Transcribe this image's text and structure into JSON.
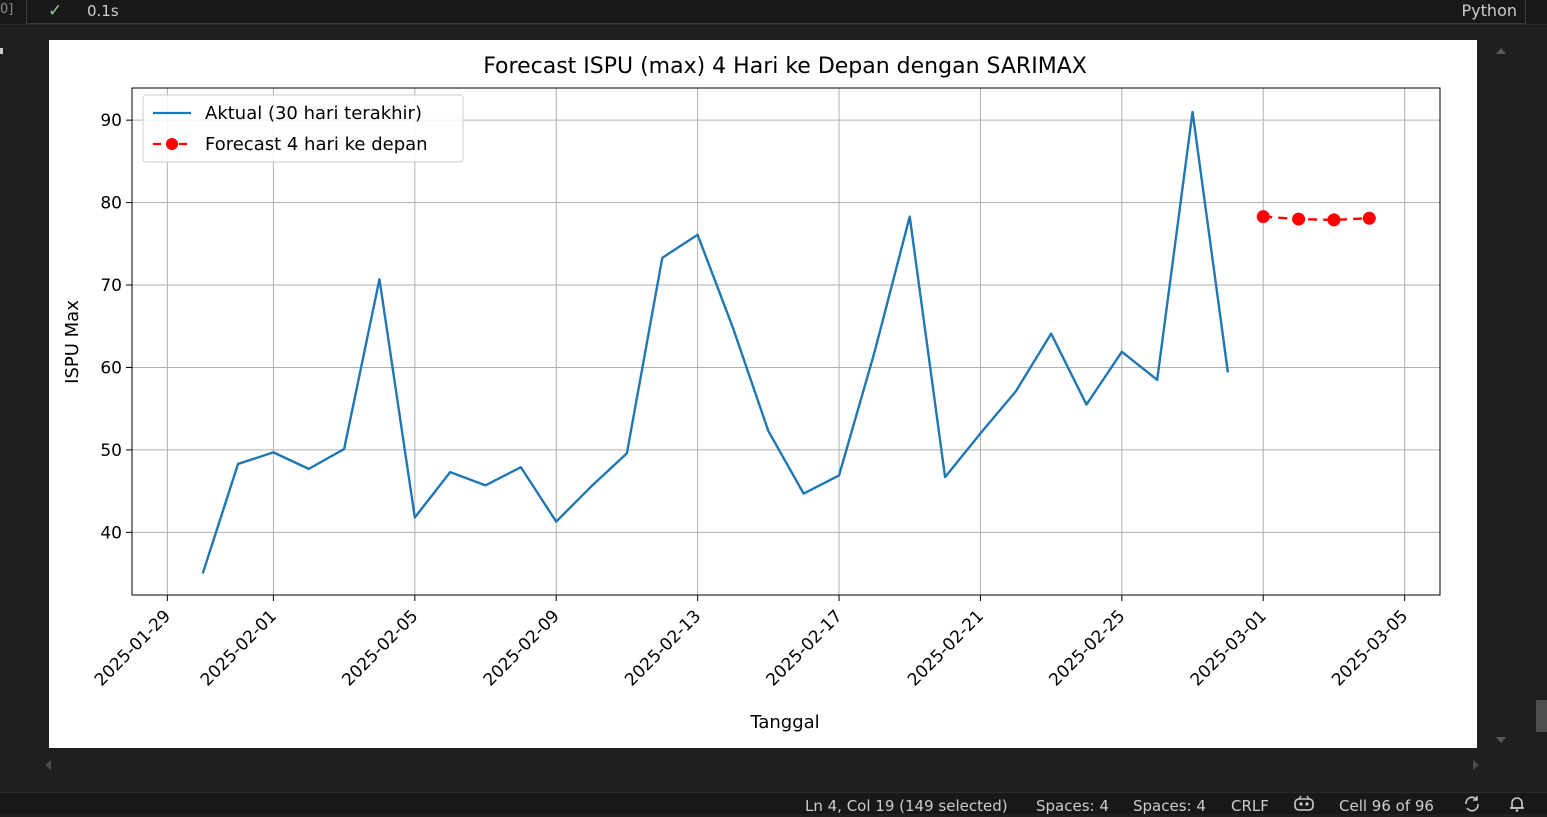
{
  "cell": {
    "exec_count": "0]",
    "status_icon": "check-icon",
    "exec_time": "0.1s",
    "kernel": "Python"
  },
  "chart_data": {
    "type": "line",
    "title": "Forecast ISPU (max) 4 Hari ke Depan dengan SARIMAX",
    "xlabel": "Tanggal",
    "ylabel": "ISPU Max",
    "x_tick_labels": [
      "2025-01-29",
      "2025-02-01",
      "2025-02-05",
      "2025-02-09",
      "2025-02-13",
      "2025-02-17",
      "2025-02-21",
      "2025-02-25",
      "2025-03-01",
      "2025-03-05"
    ],
    "y_ticks": [
      40,
      50,
      60,
      70,
      80,
      90
    ],
    "xlim": [
      "2025-01-28",
      "2025-03-06"
    ],
    "ylim": [
      32.4,
      93.9
    ],
    "grid": true,
    "legend_position": "upper left",
    "series": [
      {
        "name": "Aktual (30 hari terakhir)",
        "color": "#1f77b4",
        "style": "solid",
        "marker": "none",
        "x": [
          "2025-01-30",
          "2025-01-31",
          "2025-02-01",
          "2025-02-02",
          "2025-02-03",
          "2025-02-04",
          "2025-02-05",
          "2025-02-06",
          "2025-02-07",
          "2025-02-08",
          "2025-02-09",
          "2025-02-10",
          "2025-02-11",
          "2025-02-12",
          "2025-02-13",
          "2025-02-14",
          "2025-02-15",
          "2025-02-16",
          "2025-02-17",
          "2025-02-18",
          "2025-02-19",
          "2025-02-20",
          "2025-02-21",
          "2025-02-22",
          "2025-02-23",
          "2025-02-24",
          "2025-02-25",
          "2025-02-26",
          "2025-02-27",
          "2025-02-28"
        ],
        "y": [
          35.0,
          48.3,
          49.7,
          47.7,
          50.1,
          70.7,
          41.8,
          47.3,
          45.7,
          47.9,
          41.3,
          45.6,
          49.6,
          73.3,
          76.1,
          64.8,
          52.3,
          44.7,
          46.9,
          61.8,
          78.3,
          46.7,
          52.0,
          57.1,
          64.1,
          55.5,
          61.9,
          58.5,
          91.0,
          59.4
        ]
      },
      {
        "name": "Forecast 4 hari ke depan",
        "color": "#ff0000",
        "style": "dashed",
        "marker": "circle",
        "x": [
          "2025-03-01",
          "2025-03-02",
          "2025-03-03",
          "2025-03-04"
        ],
        "y": [
          78.3,
          78.0,
          77.9,
          78.1
        ]
      }
    ]
  },
  "status_bar": {
    "position": "Ln 4, Col 19 (149 selected)",
    "spaces_1": "Spaces: 4",
    "spaces_2": "Spaces: 4",
    "line_ending": "CRLF",
    "copilot_icon": "copilot-icon",
    "cell_position": "Cell 96 of 96",
    "sync_icon": "sync-icon",
    "bell_icon": "bell-icon"
  }
}
